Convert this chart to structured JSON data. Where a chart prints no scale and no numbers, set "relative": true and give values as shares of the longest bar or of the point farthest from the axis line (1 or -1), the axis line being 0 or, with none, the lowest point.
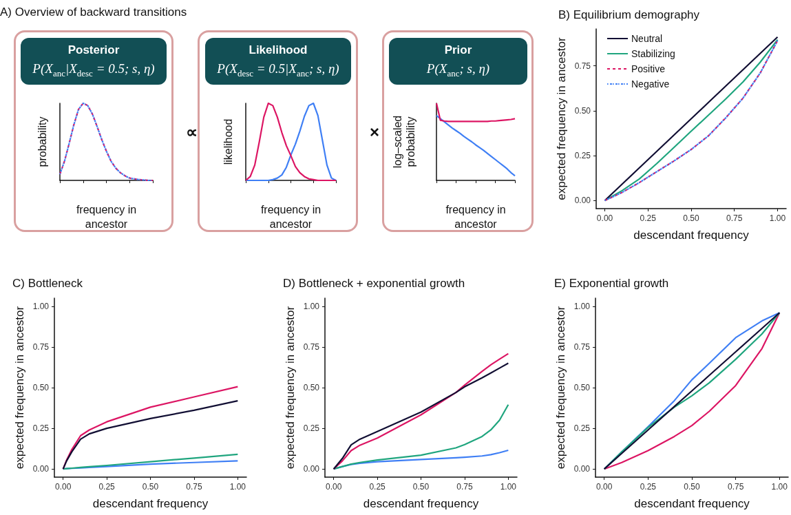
{
  "chart_data": [
    {
      "type": "line",
      "title": "Posterior",
      "subtitle": "P(X$_{anc}$|X$_{desc}$ = 0.5; s, η)",
      "xlabel": "frequency in ancestor",
      "ylabel": "probability",
      "annotations": [
        "A) Overview of backward transitions",
        "∝"
      ],
      "relative": true,
      "marker": "none",
      "categories": [
        null,
        null,
        null,
        null,
        null,
        null,
        null,
        null,
        null,
        null,
        null,
        null,
        null,
        null,
        null,
        null,
        null,
        null,
        null,
        null,
        null
      ],
      "series": [
        {
          "color": "#dc1563",
          "line_style": "dashed",
          "values": [
            0.08,
            0.25,
            0.48,
            0.72,
            0.92,
            1.0,
            0.97,
            0.86,
            0.7,
            0.53,
            0.38,
            0.25,
            0.16,
            0.1,
            0.06,
            0.03,
            0.02,
            0.01,
            0.005,
            0,
            0
          ]
        },
        {
          "color": "#3f7ff5",
          "line_style": "dashed",
          "values": [
            0.08,
            0.25,
            0.48,
            0.72,
            0.92,
            1.0,
            0.97,
            0.86,
            0.7,
            0.53,
            0.38,
            0.25,
            0.16,
            0.1,
            0.06,
            0.03,
            0.02,
            0.01,
            0.005,
            0,
            0
          ]
        }
      ]
    },
    {
      "type": "line",
      "title": "Likelihood",
      "subtitle": "P(X$_{desc}$ = 0.5|X$_{anc}$; s, η)",
      "xlabel": "frequency in ancestor",
      "ylabel": "likelihood",
      "annotations": [
        "×"
      ],
      "relative": true,
      "marker": "none",
      "categories": [
        null,
        null,
        null,
        null,
        null,
        null,
        null,
        null,
        null,
        null,
        null,
        null,
        null,
        null,
        null,
        null,
        null,
        null,
        null,
        null,
        null
      ],
      "series": [
        {
          "color": "#dc1563",
          "values": [
            0,
            0.05,
            0.2,
            0.5,
            0.82,
            1.0,
            0.97,
            0.82,
            0.62,
            0.45,
            0.32,
            0.18,
            0.1,
            0.05,
            0.02,
            0.01,
            0,
            0,
            0,
            0,
            0
          ]
        },
        {
          "color": "#3f7ff5",
          "values": [
            0,
            0,
            0,
            0,
            0,
            0,
            0.01,
            0.03,
            0.07,
            0.17,
            0.33,
            0.47,
            0.64,
            0.83,
            0.97,
            1.0,
            0.84,
            0.52,
            0.2,
            0.03,
            0
          ]
        }
      ]
    },
    {
      "type": "line",
      "title": "Prior",
      "subtitle": "P(X$_{anc}$; s, η)",
      "xlabel": "frequency in ancestor",
      "ylabel": "log–scaled probability",
      "relative": true,
      "marker": "none",
      "categories": [
        null,
        null,
        null,
        null,
        null,
        null,
        null,
        null,
        null,
        null,
        null,
        null,
        null,
        null,
        null,
        null,
        null,
        null,
        null,
        null,
        null
      ],
      "series": [
        {
          "color": "#dc1563",
          "values": [
            1.0,
            0.78,
            0.77,
            0.765,
            0.765,
            0.765,
            0.765,
            0.765,
            0.765,
            0.765,
            0.765,
            0.765,
            0.765,
            0.765,
            0.77,
            0.77,
            0.775,
            0.78,
            0.785,
            0.79,
            0.8
          ]
        },
        {
          "color": "#3f7ff5",
          "values": [
            0.84,
            0.8,
            0.76,
            0.72,
            0.68,
            0.645,
            0.61,
            0.57,
            0.535,
            0.5,
            0.46,
            0.425,
            0.39,
            0.35,
            0.31,
            0.27,
            0.23,
            0.19,
            0.15,
            0.1,
            0.06
          ]
        }
      ]
    },
    {
      "type": "line",
      "title": "B) Equilibrium demography",
      "xlabel": "descendant frequency",
      "ylabel": "expected frequency in ancestor",
      "marker": "none",
      "legend": "top left",
      "xlim": [
        -0.05,
        1.05
      ],
      "ylim": [
        -0.045,
        0.955
      ],
      "xticks": [
        {
          "value": 0,
          "label": "0.00"
        },
        {
          "value": 0.25,
          "label": "0.25"
        },
        {
          "value": 0.5,
          "label": "0.50"
        },
        {
          "value": 0.75,
          "label": "0.75"
        },
        {
          "value": 1,
          "label": "1.00"
        }
      ],
      "yticks": [
        {
          "value": 0,
          "label": "0.00"
        },
        {
          "value": 0.25,
          "label": "0.25"
        },
        {
          "value": 0.5,
          "label": "0.50"
        },
        {
          "value": 0.75,
          "label": "0.75"
        }
      ],
      "x": [
        0,
        0.1,
        0.2,
        0.3,
        0.4,
        0.5,
        0.6,
        0.7,
        0.8,
        0.9,
        1
      ],
      "series": [
        {
          "name": "Neutral",
          "color": "#110e33",
          "values": [
            0,
            0.091,
            0.182,
            0.273,
            0.364,
            0.455,
            0.546,
            0.637,
            0.728,
            0.819,
            0.91
          ]
        },
        {
          "name": "Stabilizing",
          "color": "#1fa57e",
          "values": [
            0,
            0.055,
            0.12,
            0.205,
            0.295,
            0.386,
            0.475,
            0.565,
            0.66,
            0.77,
            0.895
          ]
        },
        {
          "name": "Positive",
          "color": "#dc1563",
          "line_style": "dashed",
          "values": [
            0,
            0.045,
            0.1,
            0.16,
            0.22,
            0.284,
            0.36,
            0.46,
            0.57,
            0.71,
            0.89
          ]
        },
        {
          "name": "Negative",
          "color": "#3f7ff5",
          "line_style": "dashed",
          "values": [
            0,
            0.045,
            0.1,
            0.16,
            0.22,
            0.284,
            0.36,
            0.46,
            0.57,
            0.71,
            0.89
          ]
        }
      ]
    },
    {
      "type": "line",
      "title": "C) Bottleneck",
      "xlabel": "descendant frequency",
      "ylabel": "expected frequency in ancestor",
      "marker": "none",
      "xlim": [
        -0.05,
        1.05
      ],
      "ylim": [
        -0.05,
        1.05
      ],
      "xticks": [
        {
          "value": 0,
          "label": "0.00"
        },
        {
          "value": 0.25,
          "label": "0.25"
        },
        {
          "value": 0.5,
          "label": "0.50"
        },
        {
          "value": 0.75,
          "label": "0.75"
        },
        {
          "value": 1,
          "label": "1.00"
        }
      ],
      "yticks": [
        {
          "value": 0,
          "label": "0.00"
        },
        {
          "value": 0.25,
          "label": "0.25"
        },
        {
          "value": 0.5,
          "label": "0.50"
        },
        {
          "value": 0.75,
          "label": "0.75"
        },
        {
          "value": 1,
          "label": "1.00"
        }
      ],
      "x": [
        0,
        0.02,
        0.05,
        0.1,
        0.15,
        0.25,
        0.5,
        0.75,
        1
      ],
      "series": [
        {
          "color": "#110e33",
          "values": [
            0,
            0.05,
            0.106,
            0.183,
            0.216,
            0.25,
            0.31,
            0.361,
            0.419
          ]
        },
        {
          "color": "#dc1563",
          "values": [
            0,
            0.055,
            0.12,
            0.205,
            0.24,
            0.29,
            0.38,
            0.443,
            0.506
          ]
        },
        {
          "color": "#1fa57e",
          "values": [
            0,
            0.002,
            0.005,
            0.01,
            0.014,
            0.022,
            0.045,
            0.067,
            0.09
          ]
        },
        {
          "color": "#3f7ff5",
          "values": [
            0,
            0.002,
            0.004,
            0.007,
            0.01,
            0.015,
            0.03,
            0.04,
            0.05
          ]
        }
      ]
    },
    {
      "type": "line",
      "title": "D) Bottleneck + exponential growth",
      "xlabel": "descendant frequency",
      "ylabel": "expected frequency in ancestor",
      "marker": "none",
      "xlim": [
        -0.05,
        1.05
      ],
      "ylim": [
        -0.05,
        1.05
      ],
      "xticks": [
        {
          "value": 0,
          "label": "0.00"
        },
        {
          "value": 0.25,
          "label": "0.25"
        },
        {
          "value": 0.5,
          "label": "0.50"
        },
        {
          "value": 0.75,
          "label": "0.75"
        },
        {
          "value": 1,
          "label": "1.00"
        }
      ],
      "yticks": [
        {
          "value": 0,
          "label": "0.00"
        },
        {
          "value": 0.25,
          "label": "0.25"
        },
        {
          "value": 0.5,
          "label": "0.50"
        },
        {
          "value": 0.75,
          "label": "0.75"
        },
        {
          "value": 1,
          "label": "1.00"
        }
      ],
      "x": [
        0,
        0.05,
        0.1,
        0.15,
        0.25,
        0.5,
        0.7,
        0.75,
        0.85,
        0.9,
        0.95,
        1
      ],
      "series": [
        {
          "color": "#110e33",
          "values": [
            0,
            0.065,
            0.148,
            0.183,
            0.23,
            0.35,
            0.47,
            0.505,
            0.56,
            0.59,
            0.62,
            0.65
          ]
        },
        {
          "color": "#dc1563",
          "values": [
            0,
            0.05,
            0.113,
            0.146,
            0.19,
            0.333,
            0.47,
            0.515,
            0.6,
            0.64,
            0.675,
            0.709
          ]
        },
        {
          "color": "#1fa57e",
          "values": [
            0,
            0.015,
            0.03,
            0.04,
            0.055,
            0.085,
            0.13,
            0.15,
            0.2,
            0.24,
            0.3,
            0.395
          ]
        },
        {
          "color": "#3f7ff5",
          "values": [
            0,
            0.015,
            0.028,
            0.035,
            0.045,
            0.058,
            0.069,
            0.072,
            0.08,
            0.088,
            0.1,
            0.115
          ]
        }
      ]
    },
    {
      "type": "line",
      "title": "E) Exponential growth",
      "xlabel": "descendant frequency",
      "ylabel": "expected frequency in ancestor",
      "marker": "none",
      "xlim": [
        -0.05,
        1.05
      ],
      "ylim": [
        -0.05,
        1.05
      ],
      "xticks": [
        {
          "value": 0,
          "label": "0.00"
        },
        {
          "value": 0.25,
          "label": "0.25"
        },
        {
          "value": 0.5,
          "label": "0.50"
        },
        {
          "value": 0.75,
          "label": "0.75"
        },
        {
          "value": 1,
          "label": "1.00"
        }
      ],
      "yticks": [
        {
          "value": 0,
          "label": "0.00"
        },
        {
          "value": 0.25,
          "label": "0.25"
        },
        {
          "value": 0.5,
          "label": "0.50"
        },
        {
          "value": 0.75,
          "label": "0.75"
        },
        {
          "value": 1,
          "label": "1.00"
        }
      ],
      "x": [
        0,
        0.1,
        0.25,
        0.4,
        0.5,
        0.6,
        0.75,
        0.9,
        1
      ],
      "series": [
        {
          "color": "#110e33",
          "values": [
            0,
            0.096,
            0.24,
            0.384,
            0.48,
            0.576,
            0.72,
            0.864,
            0.96
          ]
        },
        {
          "color": "#1fa57e",
          "values": [
            0,
            0.105,
            0.255,
            0.38,
            0.45,
            0.53,
            0.674,
            0.83,
            0.96
          ]
        },
        {
          "color": "#dc1563",
          "values": [
            0,
            0.04,
            0.113,
            0.2,
            0.267,
            0.355,
            0.513,
            0.74,
            0.96
          ]
        },
        {
          "color": "#3f7ff5",
          "values": [
            0,
            0.105,
            0.26,
            0.42,
            0.548,
            0.65,
            0.807,
            0.91,
            0.96
          ]
        }
      ]
    }
  ]
}
